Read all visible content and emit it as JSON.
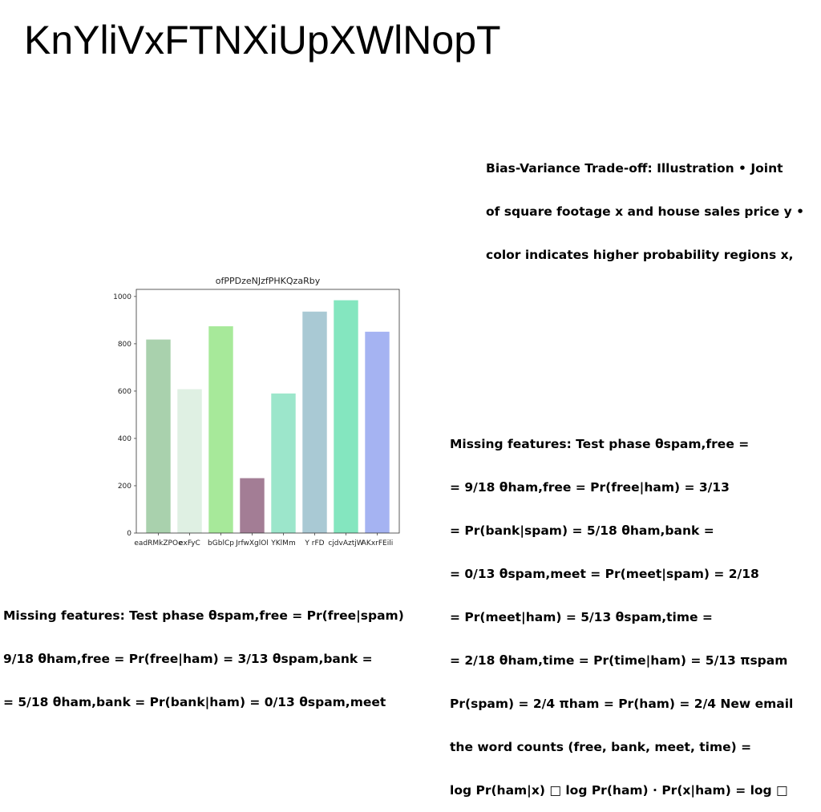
{
  "title": "KnYliVxFTNXiUpXWlNopT",
  "bias_text": [
    "Bias-Variance Trade-off: Illustration • Joint",
    "of square footage x and house sales price y •",
    "color indicates higher probability regions x,"
  ],
  "missing_right": [
    "Missing features: Test phase θspam,free =",
    "= 9/18 θham,free = Pr(free|ham) = 3/13",
    "= Pr(bank|spam) = 5/18 θham,bank =",
    "= 0/13 θspam,meet = Pr(meet|spam) = 2/18",
    "= Pr(meet|ham) = 5/13 θspam,time =",
    "= 2/18 θham,time = Pr(time|ham) = 5/13 πspam",
    "Pr(spam) = 2/4 πham = Pr(ham) = 2/4 New email",
    "the word counts (free, bank, meet, time) =",
    "log Pr(ham|x) □ log Pr(ham) · Pr(x|ham) = log □"
  ],
  "missing_bottom": [
    "Missing features: Test phase θspam,free = Pr(free|spam)",
    "9/18 θham,free = Pr(free|ham) = 3/13 θspam,bank =",
    "= 5/18 θham,bank = Pr(bank|ham) = 0/13 θspam,meet"
  ],
  "chart_data": {
    "type": "bar",
    "title": "ofPPDzeNJzfPHKQzaRby",
    "xlabel": "",
    "ylabel": "",
    "ylim": [
      0,
      1030
    ],
    "yticks": [
      0,
      200,
      400,
      600,
      800,
      1000
    ],
    "categories": [
      "eadRMkZPOe",
      "exFyC",
      "bGblCp",
      "JrfwXglOl",
      "YKlMm",
      "Y rFD",
      "cjdvAztjW",
      "AKxrFEili"
    ],
    "values": [
      818,
      608,
      874,
      232,
      590,
      936,
      984,
      851
    ],
    "colors": [
      "#a9d1ad",
      "#dff0e3",
      "#a7e99a",
      "#a37d95",
      "#9ce6cb",
      "#a9c9d4",
      "#84e6bf",
      "#a5b3f2"
    ],
    "grid": false,
    "legend": "none"
  }
}
